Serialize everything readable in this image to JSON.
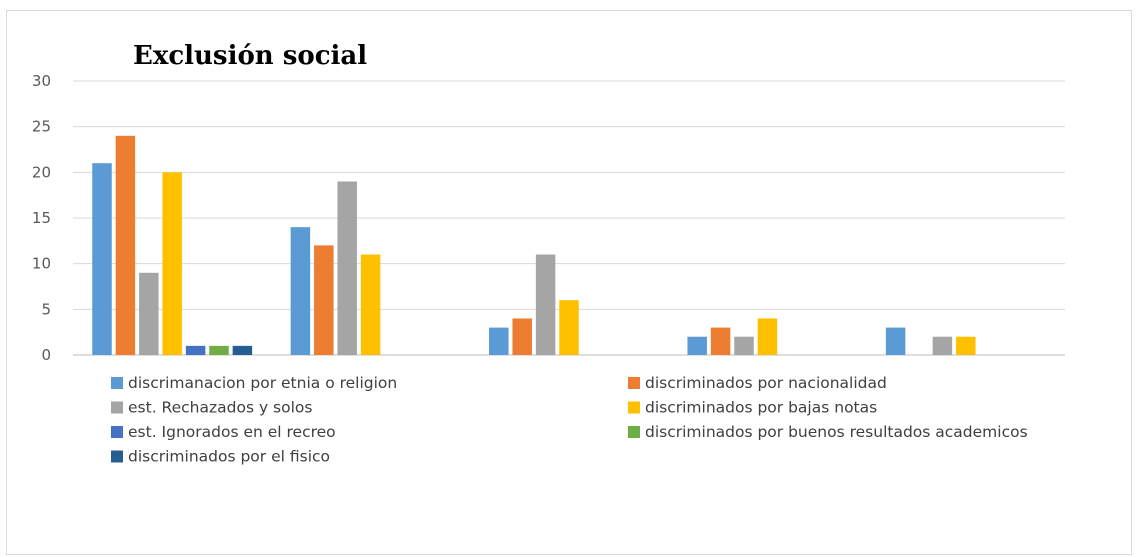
{
  "chart_data": {
    "type": "bar",
    "title": "Exclusión social",
    "xlabel": "",
    "ylabel": "",
    "ylim": [
      0,
      30
    ],
    "yticks": [
      0,
      5,
      10,
      15,
      20,
      25,
      30
    ],
    "grid": true,
    "legend_position": "bottom",
    "categories": [
      "",
      "",
      "",
      "",
      ""
    ],
    "series": [
      {
        "name": "discrimanacion por etnia o religion",
        "color": "#5b9bd5",
        "values": [
          21,
          14,
          3,
          2,
          3
        ]
      },
      {
        "name": "discriminados por nacionalidad",
        "color": "#ed7d31",
        "values": [
          24,
          12,
          4,
          3,
          0
        ]
      },
      {
        "name": "est. Rechazados y solos",
        "color": "#a5a5a5",
        "values": [
          9,
          19,
          11,
          2,
          2
        ]
      },
      {
        "name": "discriminados por bajas notas",
        "color": "#ffc000",
        "values": [
          20,
          11,
          6,
          4,
          2
        ]
      },
      {
        "name": "est. Ignorados en el recreo",
        "color": "#4472c4",
        "values": [
          1,
          0,
          0,
          0,
          0
        ]
      },
      {
        "name": "discriminados por buenos resultados academicos",
        "color": "#70ad47",
        "values": [
          1,
          0,
          0,
          0,
          0
        ]
      },
      {
        "name": "discriminados por el fisico",
        "color": "#255e91",
        "values": [
          1,
          0,
          0,
          0,
          0
        ]
      }
    ]
  }
}
